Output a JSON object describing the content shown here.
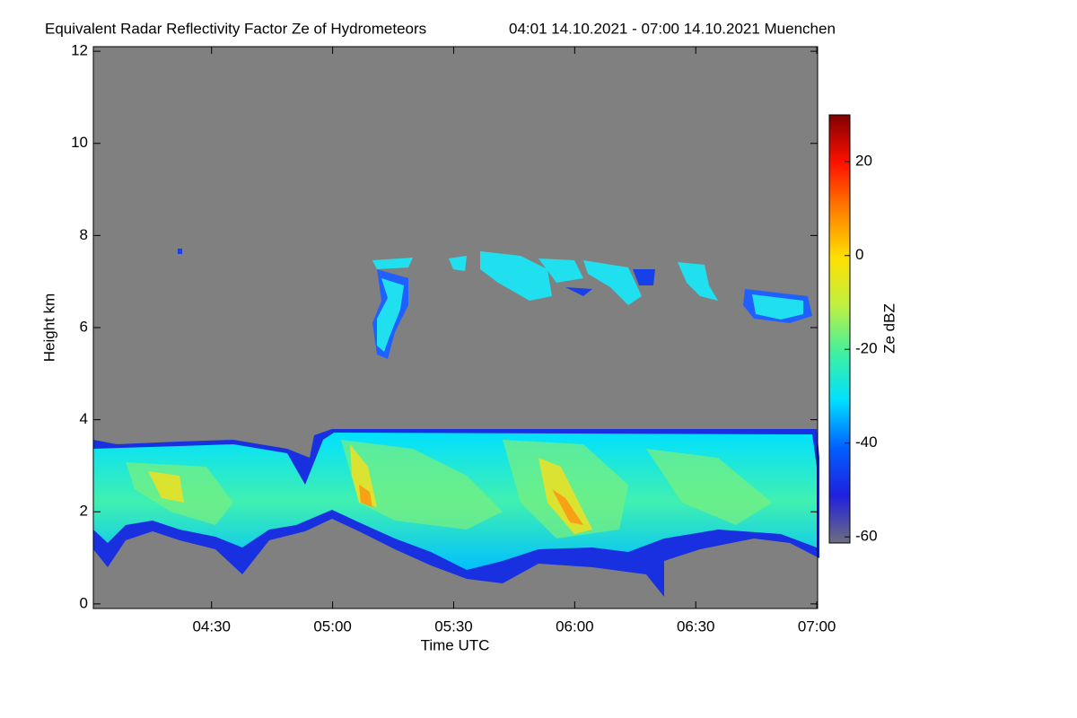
{
  "chart_data": {
    "type": "heatmap",
    "title": "Equivalent Radar Reflectivity Factor Ze of Hydrometeors",
    "subtitle": "04:01 14.10.2021 - 07:00 14.10.2021 Muenchen",
    "x_label": "Time UTC",
    "y_label": "Height km",
    "xlim": [
      240.7,
      420.2
    ],
    "xticks": [
      {
        "value": 270,
        "label": "04:30"
      },
      {
        "value": 300,
        "label": "05:00"
      },
      {
        "value": 330,
        "label": "05:30"
      },
      {
        "value": 360,
        "label": "06:00"
      },
      {
        "value": 390,
        "label": "06:30"
      },
      {
        "value": 420,
        "label": "07:00"
      }
    ],
    "ylim": [
      -0.1,
      12.1
    ],
    "yticks": [
      0,
      2,
      4,
      6,
      8,
      10,
      12
    ],
    "colorbar_label": "Ze dBZ",
    "clim": [
      -61.3,
      30
    ],
    "colorbar_ticks": [
      -60,
      -40,
      -20,
      0,
      20
    ],
    "background": "#808080",
    "colormap": [
      "#6e6e80",
      "#2020e0",
      "#0060ff",
      "#00e0ff",
      "#40f0a0",
      "#c0f040",
      "#ffe000",
      "#ff8000",
      "#ff1000",
      "#800000"
    ]
  }
}
